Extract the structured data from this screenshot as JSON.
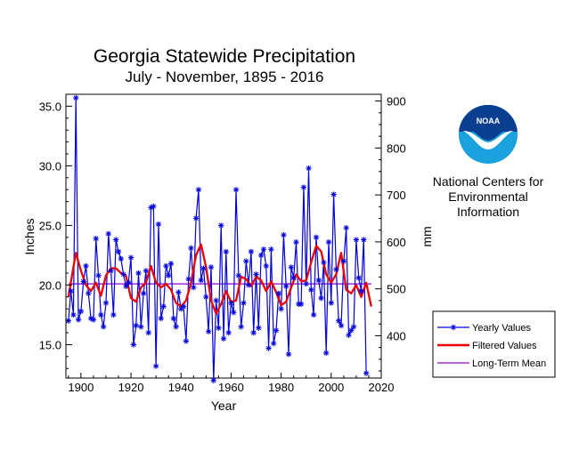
{
  "chart_data": {
    "type": "line",
    "title": "Georgia Statewide Precipitation",
    "subtitle": "July - November, 1895 - 2016",
    "xlabel": "Year",
    "ylabel": "Inches",
    "ylabel_right": "mm",
    "xlim": [
      1894,
      2020
    ],
    "ylim": [
      12.2,
      36.0
    ],
    "x_ticks": [
      "1900",
      "1920",
      "1940",
      "1960",
      "1980",
      "2000",
      "2020"
    ],
    "y_ticks": [
      "15.0",
      "20.0",
      "25.0",
      "30.0",
      "35.0"
    ],
    "y_ticks_right": [
      "400",
      "500",
      "600",
      "700",
      "800",
      "900"
    ],
    "legend_position": "right",
    "colors": {
      "yearly": "#0000dd",
      "filtered": "#ee0000",
      "mean": "#8800cc"
    },
    "series": [
      {
        "name": "Yearly Values",
        "x_start": 1895,
        "x_end": 2016,
        "values": [
          17.0,
          19.5,
          17.5,
          35.7,
          17.1,
          17.8,
          20.3,
          21.6,
          19.3,
          17.2,
          17.1,
          23.9,
          20.8,
          17.5,
          16.5,
          18.5,
          24.3,
          21.2,
          17.5,
          23.8,
          22.8,
          22.2,
          20.9,
          19.9,
          20.2,
          22.3,
          15.0,
          16.6,
          21.0,
          16.5,
          19.3,
          21.2,
          16.0,
          26.5,
          26.6,
          13.2,
          25.1,
          17.2,
          18.2,
          21.6,
          20.8,
          21.8,
          17.2,
          16.5,
          19.4,
          18.0,
          18.2,
          15.3,
          20.5,
          23.1,
          19.8,
          25.6,
          28.0,
          20.4,
          21.4,
          19.0,
          16.1,
          21.5,
          12.0,
          18.7,
          16.4,
          25.0,
          15.5,
          22.8,
          16.0,
          18.5,
          17.7,
          28.0,
          20.8,
          16.5,
          18.5,
          22.0,
          20.0,
          22.8,
          16.0,
          20.9,
          16.4,
          22.5,
          23.0,
          21.6,
          14.7,
          23.0,
          15.1,
          16.2,
          19.3,
          18.0,
          24.2,
          19.9,
          14.2,
          21.5,
          20.6,
          23.6,
          18.4,
          18.4,
          28.2,
          20.1,
          29.8,
          19.6,
          17.5,
          24.0,
          20.4,
          18.9,
          21.9,
          14.3,
          23.6,
          18.5,
          27.6,
          21.3,
          17.0,
          16.6,
          22.0,
          24.8,
          15.8,
          16.2,
          16.5,
          23.8,
          20.6,
          19.5,
          23.8,
          12.6
        ]
      },
      {
        "name": "Filtered Values",
        "x": [
          1895,
          1897,
          1898,
          1900,
          1902,
          1904,
          1906,
          1908,
          1910,
          1912,
          1914,
          1916,
          1918,
          1920,
          1922,
          1924,
          1926,
          1928,
          1930,
          1932,
          1934,
          1936,
          1938,
          1940,
          1942,
          1944,
          1946,
          1948,
          1950,
          1952,
          1954,
          1956,
          1958,
          1960,
          1962,
          1964,
          1966,
          1968,
          1970,
          1972,
          1974,
          1976,
          1978,
          1980,
          1982,
          1984,
          1986,
          1988,
          1990,
          1992,
          1994,
          1996,
          1998,
          2000,
          2002,
          2004,
          2006,
          2008,
          2010,
          2012,
          2014,
          2016
        ],
        "values": [
          19.0,
          21.5,
          22.7,
          21.2,
          20.0,
          19.5,
          20.2,
          19.1,
          20.8,
          21.4,
          21.4,
          21.0,
          20.8,
          18.9,
          18.6,
          19.8,
          20.2,
          21.6,
          20.2,
          19.8,
          20.1,
          19.6,
          18.5,
          18.2,
          18.7,
          20.2,
          22.5,
          23.4,
          21.5,
          18.7,
          17.6,
          18.4,
          19.5,
          18.6,
          18.7,
          20.7,
          20.5,
          19.9,
          20.7,
          20.4,
          19.5,
          20.3,
          19.4,
          18.3,
          18.6,
          19.8,
          20.9,
          20.3,
          20.4,
          21.9,
          23.3,
          22.8,
          20.9,
          20.2,
          20.9,
          22.7,
          19.6,
          19.3,
          20.0,
          19.0,
          20.2,
          18.2
        ]
      },
      {
        "name": "Long-Term Mean",
        "x": [
          1895,
          2016
        ],
        "values": [
          20.1,
          20.1
        ]
      }
    ]
  },
  "logo": {
    "text": "NOAA",
    "caption_lines": [
      "National Centers for",
      "Environmental",
      "Information"
    ]
  }
}
